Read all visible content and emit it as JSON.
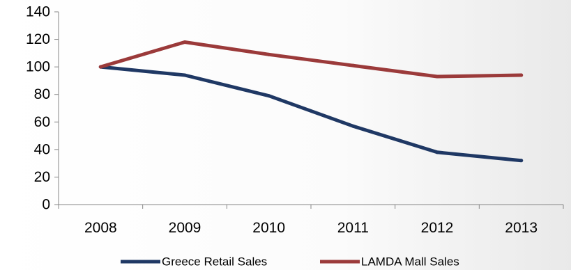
{
  "chart_data": {
    "type": "line",
    "x": [
      "2008",
      "2009",
      "2010",
      "2011",
      "2012",
      "2013"
    ],
    "series": [
      {
        "name": "Greece Retail Sales",
        "color": "#1f3864",
        "values": [
          100,
          94,
          79,
          57,
          38,
          32
        ]
      },
      {
        "name": "LAMDA Mall Sales",
        "color": "#9b3a3a",
        "values": [
          100,
          118,
          109,
          101,
          93,
          94
        ]
      }
    ],
    "yticks": [
      0,
      20,
      40,
      60,
      80,
      100,
      120,
      140
    ],
    "ylim": [
      0,
      140
    ],
    "grid": false,
    "legend_position": "bottom"
  }
}
